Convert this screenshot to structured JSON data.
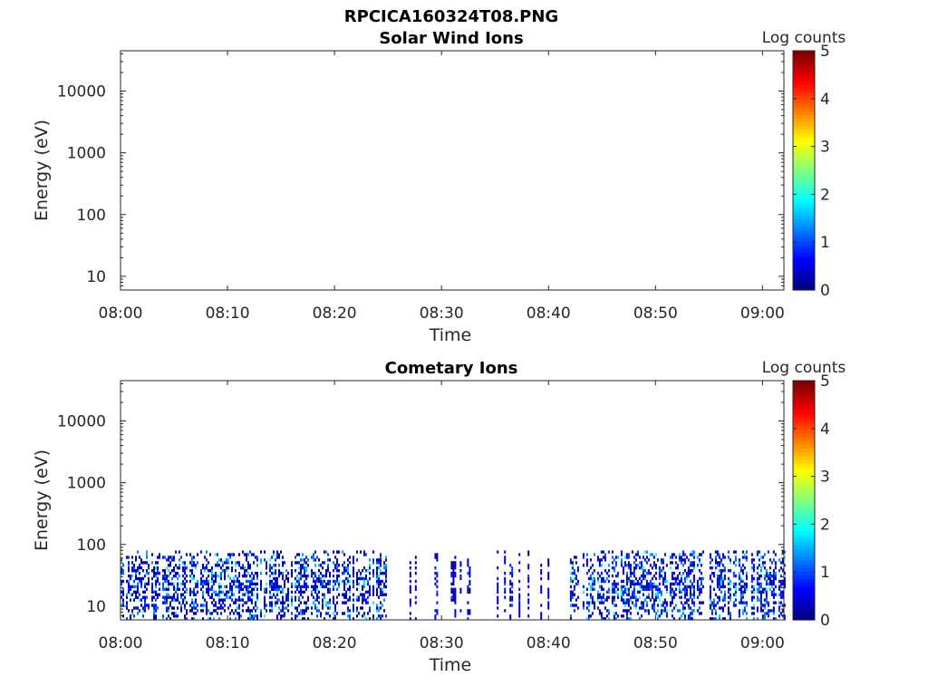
{
  "figure_title": "RPCICA160324T08.PNG",
  "chart_data": [
    {
      "type": "heatmap",
      "title": "Solar Wind Ions",
      "xlabel": "Time",
      "ylabel": "Energy (eV)",
      "y_scale": "log",
      "ylim": [
        6,
        45000
      ],
      "x_range": [
        "08:00",
        "09:02"
      ],
      "x_ticks": [
        "08:00",
        "08:10",
        "08:20",
        "08:30",
        "08:40",
        "08:50",
        "09:00"
      ],
      "y_ticks": [
        "10",
        "100",
        "1000",
        "10000"
      ],
      "colorbar": {
        "label": "Log counts",
        "range": [
          0,
          5
        ],
        "ticks": [
          "0",
          "1",
          "2",
          "3",
          "4",
          "5"
        ],
        "colormap": "jet"
      },
      "values_summary": "no counts recorded",
      "active_intervals": []
    },
    {
      "type": "heatmap",
      "title": "Cometary Ions",
      "xlabel": "Time",
      "ylabel": "Energy (eV)",
      "y_scale": "log",
      "ylim": [
        6,
        45000
      ],
      "x_range": [
        "08:00",
        "09:02"
      ],
      "x_ticks": [
        "08:00",
        "08:10",
        "08:20",
        "08:30",
        "08:40",
        "08:50",
        "09:00"
      ],
      "y_ticks": [
        "10",
        "100",
        "1000",
        "10000"
      ],
      "colorbar": {
        "label": "Log counts",
        "range": [
          0,
          5
        ],
        "ticks": [
          "0",
          "1",
          "2",
          "3",
          "4",
          "5"
        ],
        "colormap": "jet"
      },
      "values_summary": "counts between roughly 6 and 80 eV, mostly 0.2-1.5 log counts, peaks near 2",
      "energy_band_eV": [
        6,
        80
      ],
      "active_intervals": [
        {
          "start": "08:00",
          "end": "08:25",
          "density": 0.85,
          "max_log_counts": 2.0
        },
        {
          "start": "08:27",
          "end": "08:29",
          "density": 0.15,
          "max_log_counts": 1.0
        },
        {
          "start": "08:29",
          "end": "08:33",
          "density": 0.25,
          "max_log_counts": 1.0
        },
        {
          "start": "08:35",
          "end": "08:41",
          "density": 0.25,
          "max_log_counts": 1.0
        },
        {
          "start": "08:42",
          "end": "09:02",
          "density": 0.85,
          "max_log_counts": 2.0
        }
      ]
    }
  ],
  "colors": {
    "text": "#262626",
    "title": "#000000",
    "background": "#ffffff"
  }
}
